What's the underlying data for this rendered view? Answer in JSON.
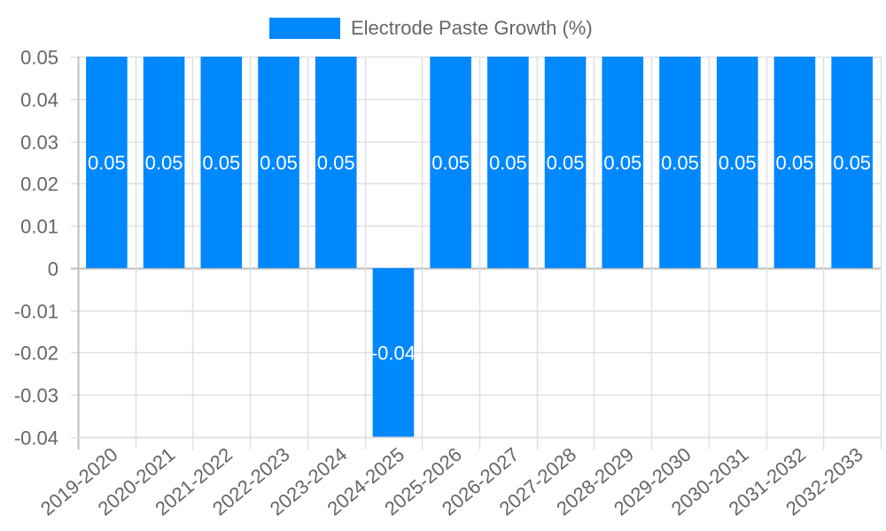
{
  "colors": {
    "bar": "#0088FF",
    "grid": "#e0e0e0",
    "axis": "#bdbdbd",
    "tick_text": "#666666",
    "value_label": "#ffffff"
  },
  "legend": {
    "label": "Electrode Paste Growth (%)"
  },
  "chart_data": {
    "type": "bar",
    "title": "",
    "xlabel": "",
    "ylabel": "",
    "legend_position": "top",
    "grid": true,
    "ylim": [
      -0.04,
      0.05
    ],
    "yticks": [
      0.05,
      0.04,
      0.03,
      0.02,
      0.01,
      0,
      -0.01,
      -0.02,
      -0.03,
      -0.04
    ],
    "ytick_labels": [
      "0.05",
      "0.04",
      "0.03",
      "0.02",
      "0.01",
      "0",
      "-0.01",
      "-0.02",
      "-0.03",
      "-0.04"
    ],
    "categories": [
      "2019-2020",
      "2020-2021",
      "2021-2022",
      "2022-2023",
      "2023-2024",
      "2024-2025",
      "2025-2026",
      "2026-2027",
      "2027-2028",
      "2028-2029",
      "2029-2030",
      "2030-2031",
      "2031-2032",
      "2032-2033"
    ],
    "series": [
      {
        "name": "Electrode Paste Growth (%)",
        "values": [
          0.05,
          0.05,
          0.05,
          0.05,
          0.05,
          -0.04,
          0.05,
          0.05,
          0.05,
          0.05,
          0.05,
          0.05,
          0.05,
          0.05
        ],
        "data_labels": [
          "0.05",
          "0.05",
          "0.05",
          "0.05",
          "0.05",
          "-0.04",
          "0.05",
          "0.05",
          "0.05",
          "0.05",
          "0.05",
          "0.05",
          "0.05",
          "0.05"
        ]
      }
    ]
  }
}
